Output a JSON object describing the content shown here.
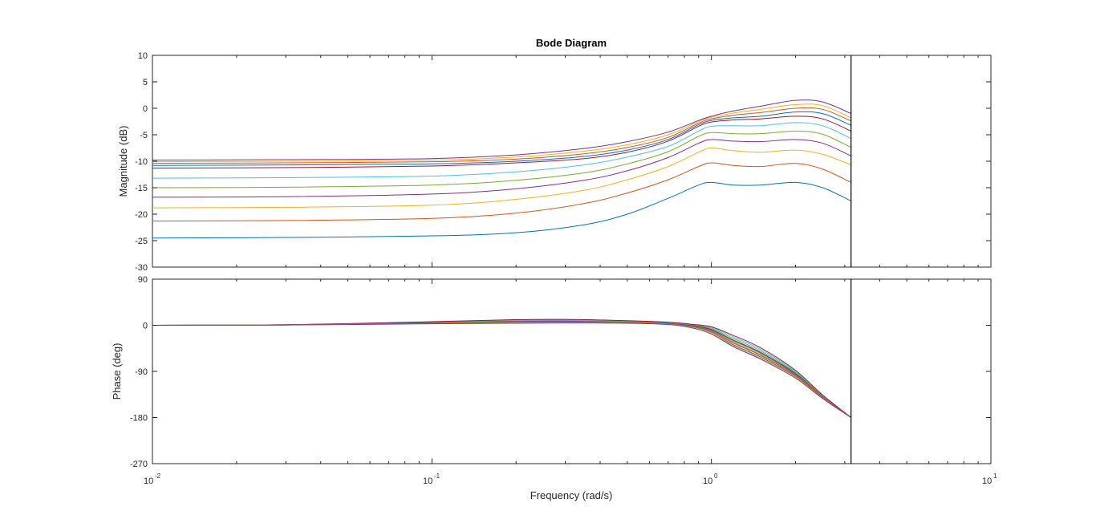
{
  "chart_data": {
    "type": "line",
    "title": "Bode Diagram",
    "xlabel": "Frequency  (rad/s)",
    "xscale": "log",
    "xlim": [
      0.01,
      10
    ],
    "xtick_labels": [
      "10",
      "-2",
      "10",
      "-1",
      "10",
      "0",
      "10",
      "1"
    ],
    "grid": false,
    "legend": "none",
    "marker_frequency": 3.16,
    "series_colors": [
      "#0072BD",
      "#D95319",
      "#EDB120",
      "#7E2F8E",
      "#77AC30",
      "#4DBEEE",
      "#A2142F",
      "#0072BD",
      "#D95319",
      "#EDB120",
      "#7E2F8E"
    ],
    "magnitude": {
      "ylabel": "Magnitude (dB)",
      "ylim": [
        -30,
        10
      ],
      "yticks": [
        "10",
        "5",
        "0",
        "-5",
        "-10",
        "-15",
        "-20",
        "-25",
        "-30"
      ],
      "x": [
        0.01,
        0.03,
        0.1,
        0.2,
        0.35,
        0.5,
        0.7,
        0.9,
        1.0,
        1.2,
        1.5,
        2.0,
        2.5,
        3.16
      ],
      "series": [
        {
          "values": [
            -24.5,
            -24.4,
            -24.1,
            -23.5,
            -22.0,
            -20.0,
            -17.0,
            -14.5,
            -14.0,
            -14.5,
            -14.5,
            -14.0,
            -15.0,
            -17.5
          ]
        },
        {
          "values": [
            -21.3,
            -21.2,
            -20.8,
            -19.8,
            -18.0,
            -16.0,
            -13.5,
            -11.0,
            -10.3,
            -10.8,
            -11.0,
            -10.4,
            -11.5,
            -14.0
          ]
        },
        {
          "values": [
            -18.8,
            -18.7,
            -18.3,
            -17.2,
            -15.5,
            -13.5,
            -11.0,
            -8.3,
            -7.5,
            -8.0,
            -8.3,
            -7.9,
            -8.7,
            -10.7
          ]
        },
        {
          "values": [
            -16.8,
            -16.7,
            -16.2,
            -15.2,
            -13.6,
            -11.8,
            -9.3,
            -6.6,
            -5.9,
            -6.2,
            -6.3,
            -5.9,
            -6.6,
            -9.0
          ]
        },
        {
          "values": [
            -15.0,
            -14.9,
            -14.5,
            -13.6,
            -12.2,
            -10.5,
            -8.2,
            -5.3,
            -4.6,
            -4.8,
            -4.8,
            -4.3,
            -4.9,
            -7.4
          ]
        },
        {
          "values": [
            -13.2,
            -13.1,
            -12.8,
            -12.0,
            -10.7,
            -9.2,
            -7.2,
            -4.3,
            -3.4,
            -3.3,
            -3.3,
            -2.7,
            -3.3,
            -5.7
          ]
        },
        {
          "values": [
            -11.3,
            -11.2,
            -10.9,
            -10.3,
            -9.5,
            -8.3,
            -6.2,
            -3.4,
            -2.6,
            -2.2,
            -2.0,
            -1.5,
            -2.0,
            -4.3
          ]
        },
        {
          "values": [
            -10.8,
            -10.7,
            -10.5,
            -10.0,
            -9.1,
            -7.9,
            -5.9,
            -3.1,
            -2.3,
            -1.8,
            -1.5,
            -0.7,
            -1.0,
            -3.2
          ]
        },
        {
          "values": [
            -10.4,
            -10.3,
            -10.1,
            -9.6,
            -8.6,
            -7.4,
            -5.5,
            -2.8,
            -2.0,
            -1.3,
            -0.8,
            0.0,
            -0.2,
            -2.4
          ]
        },
        {
          "values": [
            -10.1,
            -10.0,
            -9.8,
            -9.2,
            -8.1,
            -6.9,
            -5.0,
            -2.5,
            -1.7,
            -0.9,
            -0.2,
            0.7,
            0.5,
            -1.8
          ]
        },
        {
          "values": [
            -9.8,
            -9.7,
            -9.5,
            -8.8,
            -7.6,
            -6.3,
            -4.5,
            -2.3,
            -1.5,
            -0.5,
            0.4,
            1.5,
            1.2,
            -1.0
          ]
        }
      ]
    },
    "phase": {
      "ylabel": "Phase (deg)",
      "ylim": [
        -270,
        90
      ],
      "yticks": [
        "90",
        "0",
        "-90",
        "-180",
        "-270"
      ],
      "x": [
        0.01,
        0.03,
        0.1,
        0.2,
        0.3,
        0.5,
        0.7,
        0.85,
        1.0,
        1.2,
        1.5,
        2.0,
        2.5,
        3.16
      ],
      "series": [
        {
          "values": [
            0,
            0.5,
            4.0,
            5.0,
            5.5,
            5.0,
            3.0,
            -3.0,
            -14.0,
            -38.0,
            -62.0,
            -100.0,
            -142.0,
            -180.0
          ]
        },
        {
          "values": [
            0,
            0.6,
            4.5,
            6.0,
            6.5,
            6.0,
            3.5,
            -2.0,
            -12.0,
            -35.0,
            -59.0,
            -98.0,
            -141.0,
            -180.0
          ]
        },
        {
          "values": [
            0,
            0.7,
            5.0,
            7.0,
            7.5,
            6.5,
            4.0,
            -1.0,
            -10.0,
            -32.0,
            -56.0,
            -96.0,
            -140.0,
            -180.0
          ]
        },
        {
          "values": [
            0,
            0.8,
            5.5,
            8.0,
            8.5,
            7.0,
            4.5,
            0.0,
            -8.0,
            -29.0,
            -53.0,
            -94.0,
            -139.0,
            -180.0
          ]
        },
        {
          "values": [
            0,
            0.9,
            6.0,
            9.0,
            9.5,
            7.5,
            5.0,
            1.0,
            -6.0,
            -26.0,
            -50.0,
            -92.0,
            -138.0,
            -180.0
          ]
        },
        {
          "values": [
            0,
            1.0,
            6.5,
            10.0,
            10.5,
            8.5,
            5.5,
            1.5,
            -4.0,
            -23.0,
            -47.0,
            -90.0,
            -137.0,
            -180.0
          ]
        },
        {
          "values": [
            0,
            1.1,
            7.0,
            11.0,
            11.5,
            9.0,
            6.0,
            2.0,
            -3.0,
            -20.0,
            -44.0,
            -88.0,
            -136.0,
            -180.0
          ]
        },
        {
          "values": [
            0,
            0.9,
            5.0,
            7.0,
            7.5,
            6.0,
            3.5,
            -1.0,
            -9.0,
            -30.0,
            -54.0,
            -95.0,
            -139.5,
            -180.0
          ]
        },
        {
          "values": [
            0,
            0.8,
            4.0,
            6.0,
            6.5,
            5.5,
            2.5,
            -2.5,
            -11.0,
            -34.0,
            -58.0,
            -97.0,
            -140.5,
            -180.0
          ]
        },
        {
          "values": [
            0,
            0.7,
            3.5,
            5.0,
            5.5,
            4.5,
            2.0,
            -4.0,
            -15.0,
            -40.0,
            -64.0,
            -101.0,
            -142.5,
            -180.0
          ]
        },
        {
          "values": [
            0,
            0.6,
            3.0,
            4.0,
            4.5,
            4.0,
            1.5,
            -5.0,
            -17.0,
            -42.0,
            -66.0,
            -103.0,
            -143.0,
            -180.0
          ]
        }
      ]
    }
  }
}
